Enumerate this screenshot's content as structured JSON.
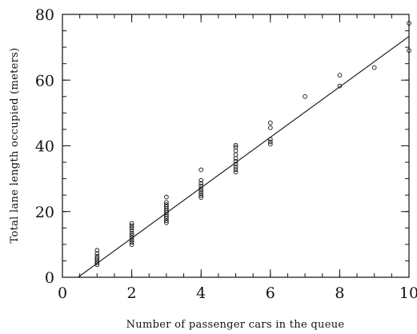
{
  "chart_data": {
    "type": "scatter",
    "title": "",
    "xlabel": "Number of passenger cars in the queue",
    "ylabel": "Total lane length occupied (meters)",
    "xlim": [
      0,
      10
    ],
    "ylim": [
      0,
      80
    ],
    "xticks": [
      0,
      2,
      4,
      6,
      8,
      10
    ],
    "yticks": [
      0,
      20,
      40,
      60,
      80
    ],
    "x_minor_step": 0.5,
    "y_minor_step": 5,
    "grid": false,
    "legend": "none",
    "marker": "open-circle",
    "series": [
      {
        "points": [
          [
            1,
            3.8
          ],
          [
            1,
            4.3
          ],
          [
            1,
            4.8
          ],
          [
            1,
            5.3
          ],
          [
            1,
            5.8
          ],
          [
            1,
            6.4
          ],
          [
            1,
            7.2
          ],
          [
            1,
            8.2
          ],
          [
            2,
            9.9
          ],
          [
            2,
            10.6
          ],
          [
            2,
            11.3
          ],
          [
            2,
            12.0
          ],
          [
            2,
            12.7
          ],
          [
            2,
            13.4
          ],
          [
            2,
            14.2
          ],
          [
            2,
            15.0
          ],
          [
            2,
            15.7
          ],
          [
            2,
            16.4
          ],
          [
            3,
            16.6
          ],
          [
            3,
            17.2
          ],
          [
            3,
            17.9
          ],
          [
            3,
            18.5
          ],
          [
            3,
            19.1
          ],
          [
            3,
            19.7
          ],
          [
            3,
            20.3
          ],
          [
            3,
            20.9
          ],
          [
            3,
            21.5
          ],
          [
            3,
            22.1
          ],
          [
            3,
            22.8
          ],
          [
            3,
            24.4
          ],
          [
            4,
            24.3
          ],
          [
            4,
            24.9
          ],
          [
            4,
            25.6
          ],
          [
            4,
            26.3
          ],
          [
            4,
            27.0
          ],
          [
            4,
            27.8
          ],
          [
            4,
            28.6
          ],
          [
            4,
            29.5
          ],
          [
            4,
            32.7
          ],
          [
            5,
            32.0
          ],
          [
            5,
            32.8
          ],
          [
            5,
            33.6
          ],
          [
            5,
            34.4
          ],
          [
            5,
            35.3
          ],
          [
            5,
            36.2
          ],
          [
            5,
            37.3
          ],
          [
            5,
            38.5
          ],
          [
            5,
            39.6
          ],
          [
            5,
            40.2
          ],
          [
            6,
            40.5
          ],
          [
            6,
            41.2
          ],
          [
            6,
            42.0
          ],
          [
            6,
            45.5
          ],
          [
            6,
            47.0
          ],
          [
            7,
            55.0
          ],
          [
            8,
            58.2
          ],
          [
            8,
            61.5
          ],
          [
            9,
            63.8
          ],
          [
            10,
            69.0
          ],
          [
            10,
            77.3
          ]
        ]
      }
    ],
    "fit_line": [
      [
        0.45,
        0
      ],
      [
        10,
        73.3
      ]
    ]
  }
}
